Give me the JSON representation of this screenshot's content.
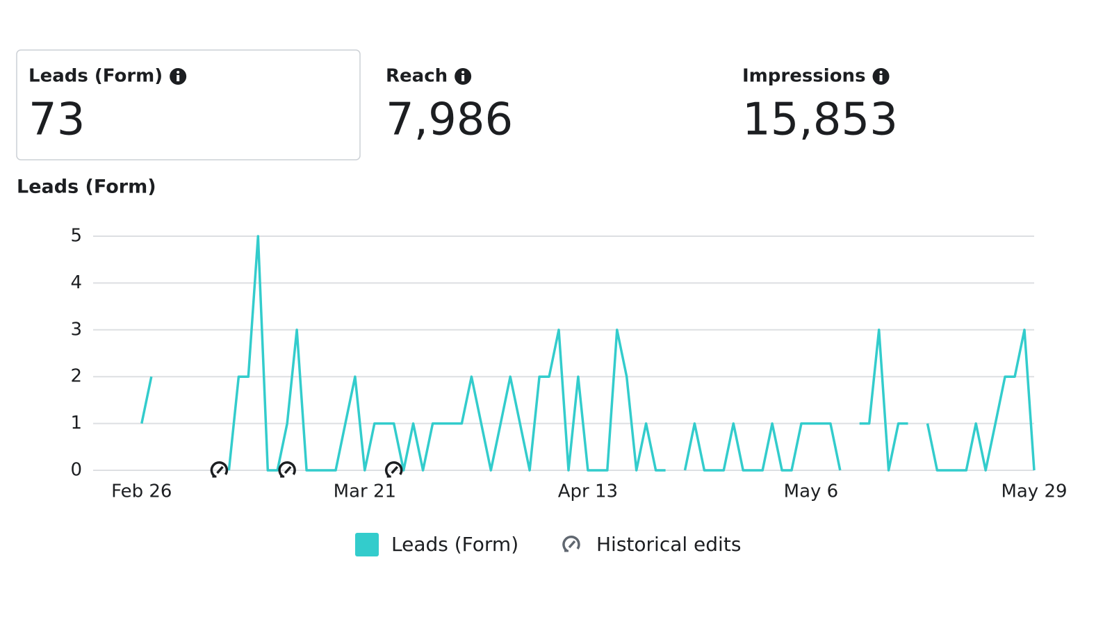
{
  "metrics": [
    {
      "label": "Leads (Form)",
      "value": "73"
    },
    {
      "label": "Reach",
      "value": "7,986"
    },
    {
      "label": "Impressions",
      "value": "15,853"
    }
  ],
  "chart_data": {
    "type": "line",
    "title": "Leads (Form)",
    "categories": [
      null,
      null,
      null,
      null,
      null,
      "Feb 26",
      null,
      null,
      null,
      null,
      null,
      null,
      null,
      null,
      null,
      null,
      null,
      null,
      null,
      null,
      null,
      null,
      null,
      null,
      null,
      null,
      null,
      null,
      "Mar 21",
      null,
      null,
      null,
      null,
      null,
      null,
      null,
      null,
      null,
      null,
      null,
      null,
      null,
      null,
      null,
      null,
      null,
      null,
      null,
      null,
      null,
      null,
      "Apr 13",
      null,
      null,
      null,
      null,
      null,
      null,
      null,
      null,
      null,
      null,
      null,
      null,
      null,
      null,
      null,
      null,
      null,
      null,
      null,
      null,
      null,
      null,
      "May 6",
      null,
      null,
      null,
      null,
      null,
      null,
      null,
      null,
      null,
      null,
      null,
      null,
      null,
      null,
      null,
      null,
      null,
      null,
      null,
      null,
      null,
      null,
      "May 29"
    ],
    "series": [
      {
        "name": "Leads (Form)",
        "color": "#33cccc",
        "values": [
          null,
          null,
          null,
          null,
          null,
          1,
          2,
          null,
          null,
          null,
          null,
          null,
          null,
          null,
          0,
          2,
          2,
          5,
          0,
          0,
          1,
          3,
          0,
          0,
          0,
          0,
          1,
          2,
          0,
          1,
          1,
          1,
          0,
          1,
          0,
          1,
          1,
          1,
          1,
          2,
          1,
          0,
          1,
          2,
          1,
          0,
          2,
          2,
          3,
          0,
          2,
          0,
          0,
          0,
          3,
          2,
          0,
          1,
          0,
          0,
          null,
          0,
          1,
          0,
          0,
          0,
          1,
          0,
          0,
          0,
          1,
          0,
          0,
          1,
          1,
          1,
          1,
          0,
          null,
          1,
          1,
          3,
          0,
          1,
          1,
          null,
          1,
          0,
          0,
          0,
          0,
          1,
          0,
          1,
          2,
          2,
          3,
          0
        ]
      },
      {
        "name": "Historical edits",
        "color": "#1c1e21",
        "values": [
          null,
          null,
          null,
          null,
          null,
          null,
          null,
          null,
          null,
          null,
          null,
          null,
          null,
          0,
          null,
          null,
          null,
          null,
          null,
          null,
          0,
          null,
          null,
          null,
          null,
          null,
          null,
          null,
          null,
          null,
          null,
          0,
          null,
          null,
          null,
          null,
          null,
          null,
          null,
          null,
          null,
          null,
          null,
          null,
          null,
          null,
          null,
          null,
          null,
          null,
          null,
          null,
          null,
          null,
          null,
          null,
          null,
          null,
          null,
          null,
          null,
          null,
          null,
          null,
          null,
          null,
          null,
          null,
          null,
          null,
          null,
          null,
          null,
          null,
          null,
          null,
          null,
          null,
          null,
          null,
          null,
          null,
          null,
          null,
          null,
          null,
          null,
          null,
          null,
          null,
          null,
          null,
          null,
          null,
          null,
          null,
          null,
          null
        ]
      }
    ],
    "ylim": [
      0,
      5
    ],
    "yticks": [
      0,
      1,
      2,
      3,
      4,
      5
    ],
    "grid": true
  }
}
